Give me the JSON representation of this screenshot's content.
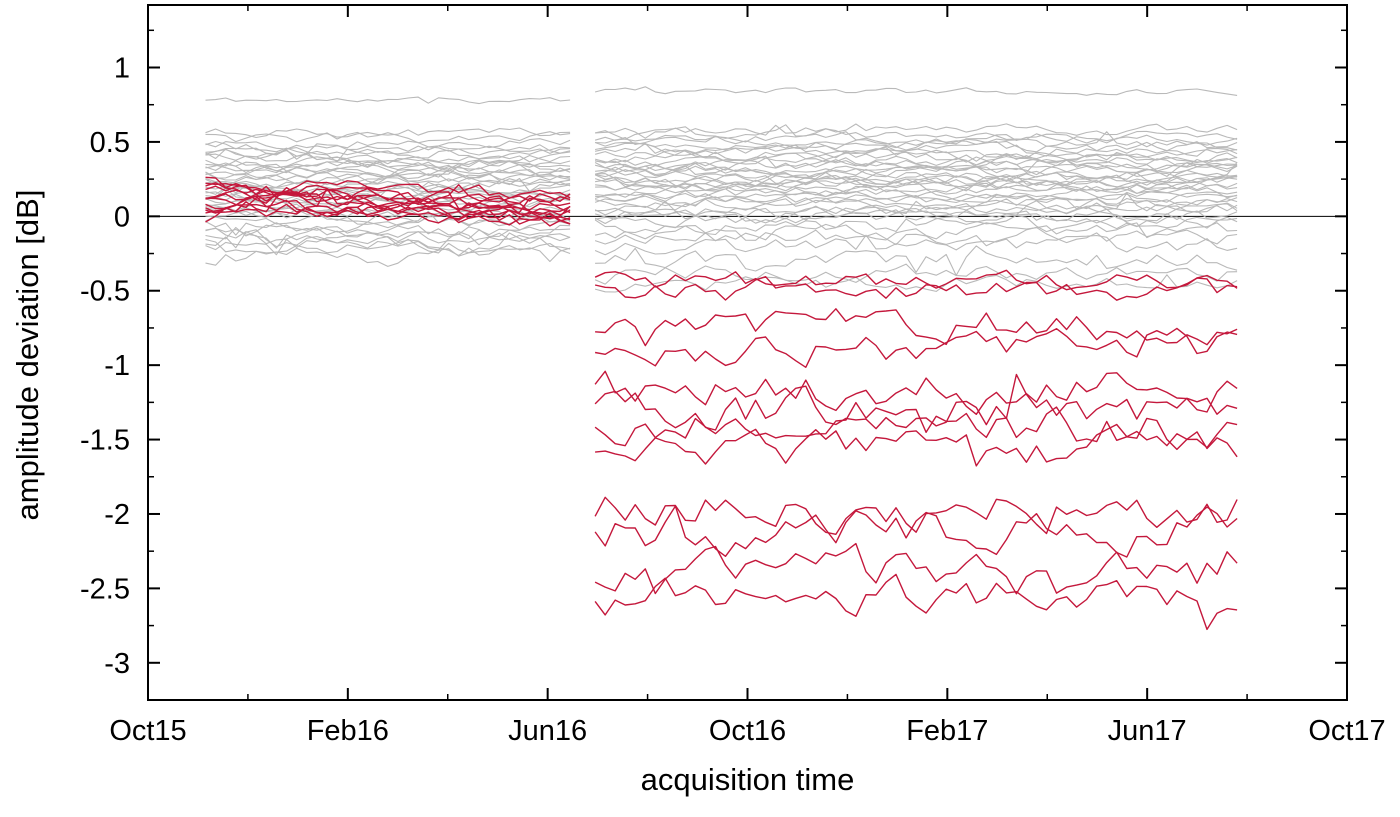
{
  "figure": {
    "background": "#ffffff",
    "axis_color": "#000000",
    "reference_color": "#b9b9b9",
    "highlight_color": "#c4183c",
    "zero_line_color": "#000000"
  },
  "chart_data": {
    "type": "line",
    "title": "",
    "xlabel": "acquisition time",
    "ylabel": "amplitude deviation [dB]",
    "x_unit": "months since Oct 2015",
    "xlim_months": [
      0,
      24
    ],
    "ylim_dB": [
      -3.25,
      1.42
    ],
    "grid": "off",
    "legend": "none",
    "zero_line_dB": 0,
    "x_ticks": {
      "labels": [
        "Oct15",
        "Feb16",
        "Jun16",
        "Oct16",
        "Feb17",
        "Jun17",
        "Oct17"
      ],
      "months": [
        0,
        4,
        8,
        12,
        16,
        20,
        24
      ],
      "minor_months": [
        2,
        6,
        10,
        14,
        18,
        22
      ]
    },
    "y_ticks": {
      "labels": [
        "1",
        "0.5",
        "0",
        "-0.5",
        "-1",
        "-1.5",
        "-2",
        "-2.5",
        "-3"
      ],
      "values": [
        1,
        0.5,
        0,
        -0.5,
        -1,
        -1.5,
        -2,
        -2.5,
        -3
      ],
      "minor_values": [
        1.25,
        0.75,
        0.25,
        -0.25,
        -0.75,
        -1.25,
        -1.75,
        -2.25,
        -2.75,
        -3.25
      ]
    },
    "sample_interval_months": 0.2,
    "segments_months": [
      [
        1.15,
        8.45
      ],
      [
        8.95,
        21.8
      ]
    ],
    "reference_series": {
      "description": "gray background scatterer time series, mean amplitude deviation per period",
      "fields": [
        "level_period1_dB",
        "level_period2_dB",
        "noise_dB"
      ],
      "lines": [
        [
          0.78,
          0.84,
          0.02
        ],
        [
          0.56,
          0.58,
          0.03
        ],
        [
          0.52,
          0.55,
          0.035
        ],
        [
          0.49,
          0.52,
          0.03
        ],
        [
          0.46,
          0.49,
          0.035
        ],
        [
          0.44,
          0.47,
          0.03
        ],
        [
          0.42,
          0.45,
          0.035
        ],
        [
          0.4,
          0.43,
          0.03
        ],
        [
          0.38,
          0.41,
          0.035
        ],
        [
          0.36,
          0.39,
          0.03
        ],
        [
          0.34,
          0.37,
          0.035
        ],
        [
          0.33,
          0.35,
          0.03
        ],
        [
          0.31,
          0.34,
          0.035
        ],
        [
          0.3,
          0.32,
          0.03
        ],
        [
          0.28,
          0.31,
          0.035
        ],
        [
          0.27,
          0.29,
          0.03
        ],
        [
          0.25,
          0.28,
          0.035
        ],
        [
          0.24,
          0.26,
          0.03
        ],
        [
          0.22,
          0.25,
          0.035
        ],
        [
          0.21,
          0.23,
          0.03
        ],
        [
          0.19,
          0.22,
          0.035
        ],
        [
          0.18,
          0.2,
          0.03
        ],
        [
          0.16,
          0.19,
          0.035
        ],
        [
          0.14,
          0.17,
          0.03
        ],
        [
          0.12,
          0.15,
          0.035
        ],
        [
          0.1,
          0.13,
          0.03
        ],
        [
          0.08,
          0.11,
          0.035
        ],
        [
          0.06,
          0.09,
          0.035
        ],
        [
          0.04,
          0.07,
          0.04
        ],
        [
          0.02,
          0.05,
          0.035
        ],
        [
          0.0,
          0.03,
          0.04
        ],
        [
          -0.03,
          0.0,
          0.04
        ],
        [
          -0.06,
          -0.03,
          0.04
        ],
        [
          -0.09,
          -0.06,
          0.045
        ],
        [
          -0.13,
          -0.1,
          0.045
        ],
        [
          -0.17,
          -0.14,
          0.05
        ],
        [
          -0.22,
          -0.2,
          0.05
        ],
        [
          -0.27,
          -0.3,
          0.055
        ],
        [
          -0.18,
          -0.38,
          0.05
        ],
        [
          -0.11,
          -0.45,
          0.045
        ]
      ]
    },
    "highlight_series": {
      "description": "red highlighted time series; near 0 to +0.3 dB in period 1, dropping to -0.4 .. -2.6 dB in period 2",
      "fields": [
        "level_period1_dB",
        "level_period2_dB",
        "noise_p1_dB",
        "noise_p2_dB"
      ],
      "period1_trend_dB": -0.08,
      "lines": [
        [
          0.22,
          -0.44,
          0.05,
          0.06
        ],
        [
          0.18,
          -0.5,
          0.05,
          0.07
        ],
        [
          0.15,
          -0.73,
          0.05,
          0.1
        ],
        [
          0.2,
          -0.88,
          0.05,
          0.1
        ],
        [
          0.12,
          -1.17,
          0.05,
          0.12
        ],
        [
          0.16,
          -1.3,
          0.05,
          0.12
        ],
        [
          0.08,
          -1.42,
          0.05,
          0.12
        ],
        [
          0.1,
          -1.57,
          0.05,
          0.11
        ],
        [
          0.06,
          -1.97,
          0.05,
          0.12
        ],
        [
          0.14,
          -2.12,
          0.05,
          0.12
        ],
        [
          0.04,
          -2.38,
          0.05,
          0.12
        ],
        [
          0.09,
          -2.55,
          0.05,
          0.11
        ]
      ]
    }
  }
}
